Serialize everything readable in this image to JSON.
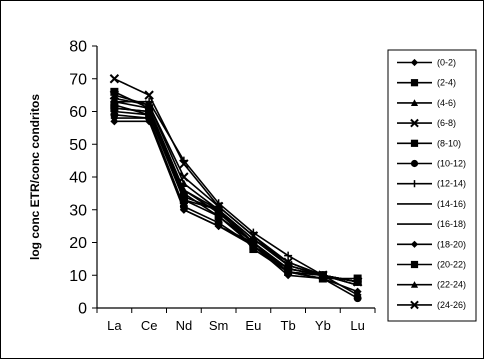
{
  "chart_data": {
    "type": "line",
    "title": "",
    "xlabel": "",
    "ylabel": "log conc ETR/conc condritos",
    "categories": [
      "La",
      "Ce",
      "Nd",
      "Sm",
      "Eu",
      "Tb",
      "Yb",
      "Lu"
    ],
    "yticks": [
      "0",
      "10",
      "20",
      "30",
      "40",
      "50",
      "60",
      "70",
      "80"
    ],
    "ylim": [
      0,
      80
    ],
    "grid": false,
    "legend_position": "right",
    "line_color": "#000000",
    "series": [
      {
        "name": "(0-2)",
        "marker": "diamond",
        "values": [
          58,
          58,
          30,
          25,
          20,
          11,
          10,
          4
        ]
      },
      {
        "name": "(2-4)",
        "marker": "square",
        "values": [
          62,
          59,
          33,
          28,
          19,
          12,
          10,
          8
        ]
      },
      {
        "name": "(4-6)",
        "marker": "triangle",
        "values": [
          64,
          62,
          38,
          30,
          21,
          14,
          10,
          8
        ]
      },
      {
        "name": "(6-8)",
        "marker": "x",
        "values": [
          70,
          65,
          44,
          31,
          22,
          14,
          10,
          8
        ]
      },
      {
        "name": "(8-10)",
        "marker": "square",
        "values": [
          66,
          61,
          34,
          30,
          20,
          12,
          10,
          8
        ]
      },
      {
        "name": "(10-12)",
        "marker": "circle",
        "values": [
          59,
          58,
          31,
          26,
          19,
          11,
          9,
          3
        ]
      },
      {
        "name": "(12-14)",
        "marker": "plus",
        "values": [
          63,
          63,
          45,
          32,
          23,
          16,
          10,
          8
        ]
      },
      {
        "name": "(14-16)",
        "marker": "none",
        "values": [
          61,
          60,
          36,
          29,
          20,
          12,
          10,
          7
        ]
      },
      {
        "name": "(16-18)",
        "marker": "none",
        "values": [
          60,
          59,
          35,
          28,
          20,
          11,
          10,
          7
        ]
      },
      {
        "name": "(18-20)",
        "marker": "diamond",
        "values": [
          57,
          57,
          30,
          25,
          19,
          10,
          9,
          5
        ]
      },
      {
        "name": "(20-22)",
        "marker": "square",
        "values": [
          61,
          60,
          33,
          30,
          18,
          11,
          9,
          9
        ]
      },
      {
        "name": "(22-24)",
        "marker": "triangle",
        "values": [
          63,
          61,
          36,
          30,
          21,
          13,
          10,
          8
        ]
      },
      {
        "name": "(24-26)",
        "marker": "x",
        "values": [
          65,
          62,
          40,
          31,
          22,
          13,
          10,
          8
        ]
      }
    ]
  }
}
